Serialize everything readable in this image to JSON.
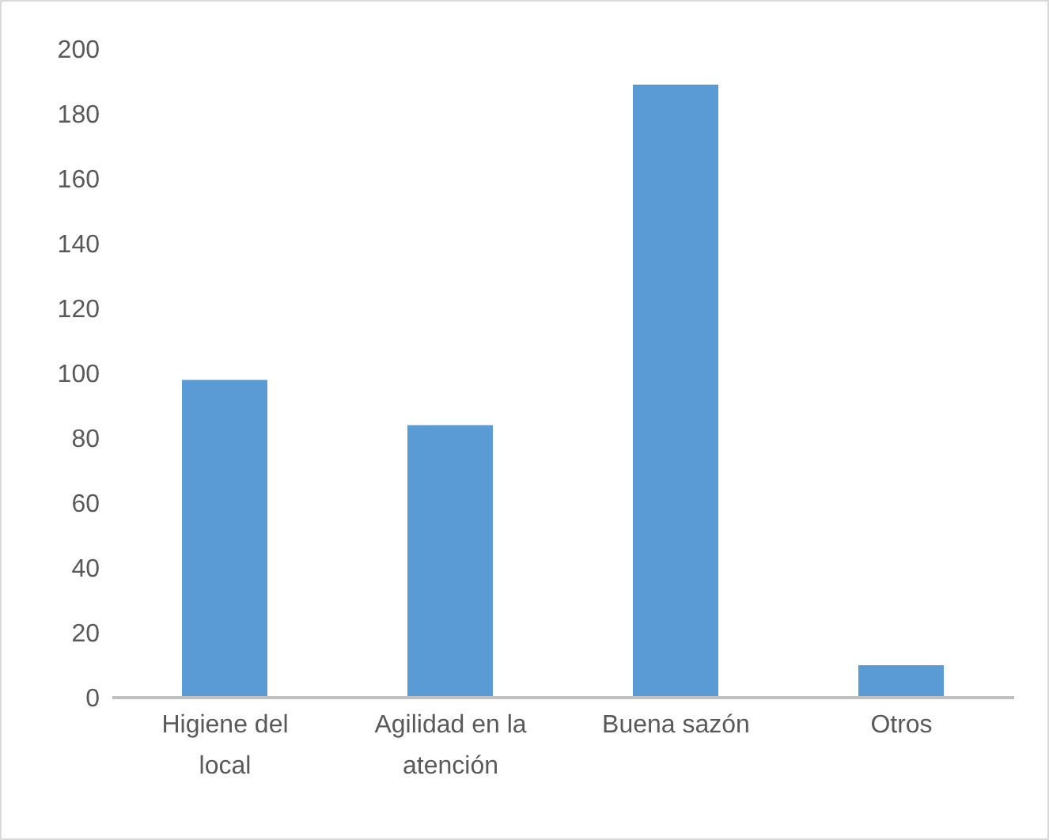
{
  "chart_data": {
    "type": "bar",
    "categories": [
      "Higiene del local",
      "Agilidad en la atención",
      "Buena sazón",
      "Otros"
    ],
    "values": [
      98,
      84,
      189,
      10
    ],
    "color": "#5b9bd5",
    "ylim": [
      0,
      200
    ],
    "yticks": [
      0,
      20,
      40,
      60,
      80,
      100,
      120,
      140,
      160,
      180,
      200
    ],
    "grid": false
  }
}
